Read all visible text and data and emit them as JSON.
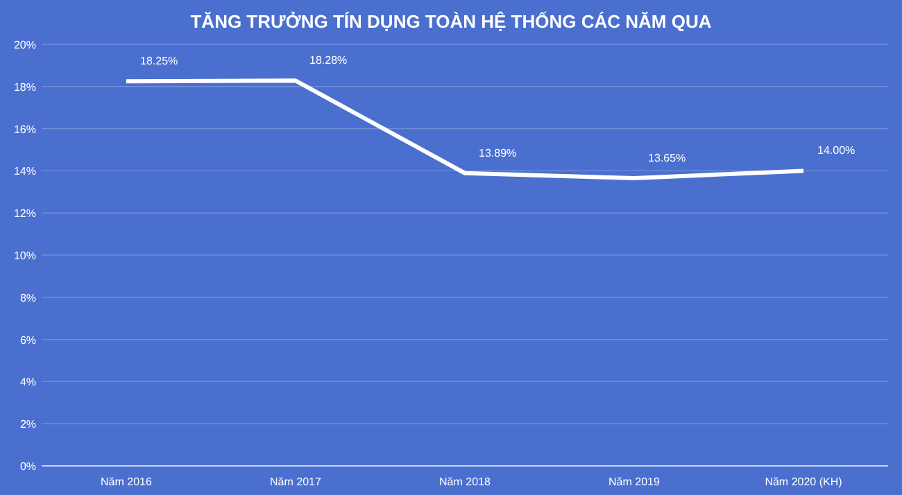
{
  "chart_data": {
    "type": "line",
    "title": "TĂNG TRƯỞNG TÍN DỤNG TOÀN HỆ THỐNG CÁC NĂM QUA",
    "categories": [
      "Năm 2016",
      "Năm 2017",
      "Năm 2018",
      "Năm 2019",
      "Năm 2020 (KH)"
    ],
    "series": [
      {
        "color": "#ffffff",
        "values": [
          18.25,
          18.28,
          13.89,
          13.65,
          14.0
        ],
        "value_labels": [
          "18.25%",
          "18.28%",
          "13.89%",
          "13.65%",
          "14.00%"
        ]
      }
    ],
    "ylim": [
      0,
      20
    ],
    "yticks": [
      {
        "value": 0,
        "label": "0%"
      },
      {
        "value": 2,
        "label": "2%"
      },
      {
        "value": 4,
        "label": "4%"
      },
      {
        "value": 6,
        "label": "6%"
      },
      {
        "value": 8,
        "label": "8%"
      },
      {
        "value": 10,
        "label": "10%"
      },
      {
        "value": 12,
        "label": "12%"
      },
      {
        "value": 14,
        "label": "14%"
      },
      {
        "value": 16,
        "label": "16%"
      },
      {
        "value": 18,
        "label": "18%"
      },
      {
        "value": 20,
        "label": "20%"
      }
    ],
    "grid": "y",
    "marker": "none",
    "line_style": "solid"
  }
}
